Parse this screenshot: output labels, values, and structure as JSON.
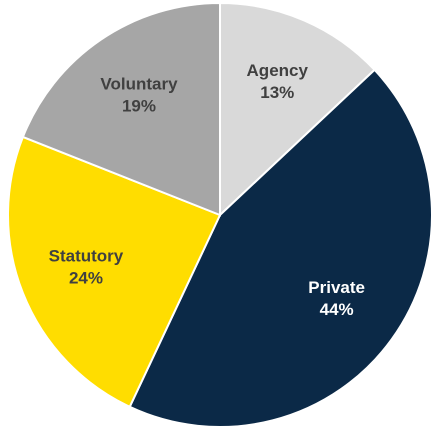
{
  "chart_data": {
    "type": "pie",
    "categories": [
      "Agency",
      "Private",
      "Statutory",
      "Voluntary"
    ],
    "values": [
      13,
      44,
      24,
      19
    ],
    "value_labels": [
      "13%",
      "44%",
      "24%",
      "19%"
    ],
    "colors": [
      "#d9d9d9",
      "#0b2947",
      "#ffdd00",
      "#a6a6a6"
    ]
  }
}
